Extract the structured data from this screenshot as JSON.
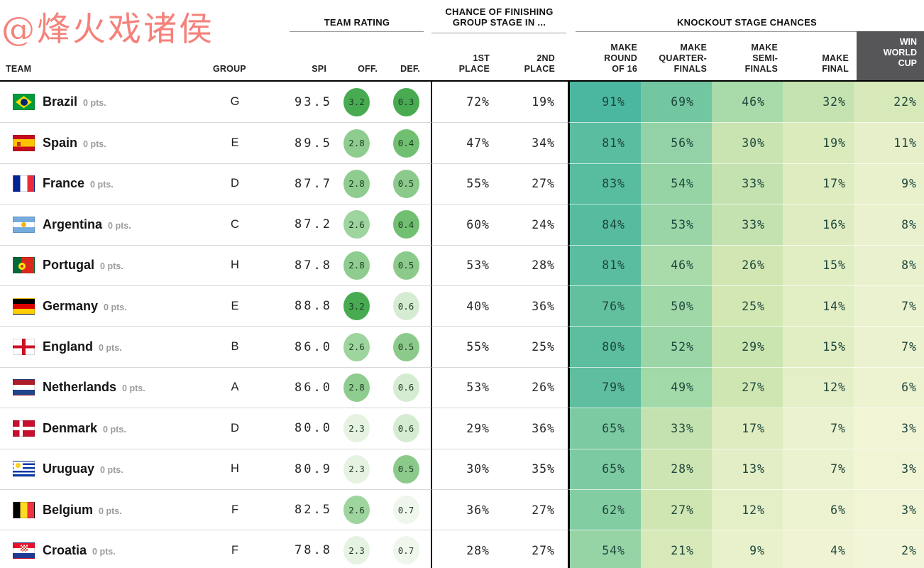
{
  "watermark": {
    "text": "@烽火戏诸侯",
    "color": "#f4827b"
  },
  "header": {
    "bands": {
      "team_rating": "TEAM RATING",
      "finishing_line1": "CHANCE OF FINISHING",
      "finishing_line2": "GROUP STAGE IN ...",
      "knockout": "KNOCKOUT STAGE CHANCES"
    },
    "columns": {
      "team": "TEAM",
      "group": "GROUP",
      "spi": "SPI",
      "off": "OFF.",
      "def": "DEF.",
      "first": [
        "1ST",
        "PLACE"
      ],
      "second": [
        "2ND",
        "PLACE"
      ],
      "r16": [
        "MAKE",
        "ROUND",
        "OF 16"
      ],
      "qf": [
        "MAKE",
        "QUARTER-",
        "FINALS"
      ],
      "sf": [
        "MAKE",
        "SEMI-",
        "FINALS"
      ],
      "final": [
        "MAKE",
        "FINAL"
      ],
      "win": [
        "WIN",
        "WORLD",
        "CUP"
      ]
    },
    "win_block_bg": "#565659"
  },
  "colors": {
    "knockout_scale": [
      [
        0,
        "#f5f6da"
      ],
      [
        25,
        "#d3e7b3"
      ],
      [
        50,
        "#a0d8a8"
      ],
      [
        75,
        "#64c19e"
      ],
      [
        100,
        "#3eb1a2"
      ]
    ],
    "knockout_text": "#1d463c",
    "off_scale": {
      "3.2": "#48ab51",
      "2.8": "#8fcc8f",
      "2.6": "#9ed49e",
      "2.3": "#e6f2e2"
    },
    "def_scale": {
      "0.3": "#48ab51",
      "0.4": "#71c071",
      "0.5": "#8cca8c",
      "0.6": "#d6ecd2",
      "0.7": "#eff6ec"
    }
  },
  "knockout_cell_names": [
    "make-round-of-16-cell",
    "make-quarterfinals-cell",
    "make-semifinals-cell",
    "make-final-cell",
    "win-world-cup-cell"
  ],
  "teams": [
    {
      "id": "brazil",
      "name": "Brazil",
      "pts": "0 pts.",
      "flag": "flag-brazil",
      "group": "G",
      "spi": "93.5",
      "off": "3.2",
      "def": "0.3",
      "first": "72%",
      "second": "19%",
      "knockout": [
        "91%",
        "69%",
        "46%",
        "32%",
        "22%"
      ]
    },
    {
      "id": "spain",
      "name": "Spain",
      "pts": "0 pts.",
      "flag": "flag-spain",
      "group": "E",
      "spi": "89.5",
      "off": "2.8",
      "def": "0.4",
      "first": "47%",
      "second": "34%",
      "knockout": [
        "81%",
        "56%",
        "30%",
        "19%",
        "11%"
      ]
    },
    {
      "id": "france",
      "name": "France",
      "pts": "0 pts.",
      "flag": "flag-france",
      "group": "D",
      "spi": "87.7",
      "off": "2.8",
      "def": "0.5",
      "first": "55%",
      "second": "27%",
      "knockout": [
        "83%",
        "54%",
        "33%",
        "17%",
        "9%"
      ]
    },
    {
      "id": "argentina",
      "name": "Argentina",
      "pts": "0 pts.",
      "flag": "flag-argentina",
      "group": "C",
      "spi": "87.2",
      "off": "2.6",
      "def": "0.4",
      "first": "60%",
      "second": "24%",
      "knockout": [
        "84%",
        "53%",
        "33%",
        "16%",
        "8%"
      ]
    },
    {
      "id": "portugal",
      "name": "Portugal",
      "pts": "0 pts.",
      "flag": "flag-portugal",
      "group": "H",
      "spi": "87.8",
      "off": "2.8",
      "def": "0.5",
      "first": "53%",
      "second": "28%",
      "knockout": [
        "81%",
        "46%",
        "26%",
        "15%",
        "8%"
      ]
    },
    {
      "id": "germany",
      "name": "Germany",
      "pts": "0 pts.",
      "flag": "flag-germany",
      "group": "E",
      "spi": "88.8",
      "off": "3.2",
      "def": "0.6",
      "first": "40%",
      "second": "36%",
      "knockout": [
        "76%",
        "50%",
        "25%",
        "14%",
        "7%"
      ]
    },
    {
      "id": "england",
      "name": "England",
      "pts": "0 pts.",
      "flag": "flag-england",
      "group": "B",
      "spi": "86.0",
      "off": "2.6",
      "def": "0.5",
      "first": "55%",
      "second": "25%",
      "knockout": [
        "80%",
        "52%",
        "29%",
        "15%",
        "7%"
      ]
    },
    {
      "id": "netherlands",
      "name": "Netherlands",
      "pts": "0 pts.",
      "flag": "flag-netherlands",
      "group": "A",
      "spi": "86.0",
      "off": "2.8",
      "def": "0.6",
      "first": "53%",
      "second": "26%",
      "knockout": [
        "79%",
        "49%",
        "27%",
        "12%",
        "6%"
      ]
    },
    {
      "id": "denmark",
      "name": "Denmark",
      "pts": "0 pts.",
      "flag": "flag-denmark",
      "group": "D",
      "spi": "80.0",
      "off": "2.3",
      "def": "0.6",
      "first": "29%",
      "second": "36%",
      "knockout": [
        "65%",
        "33%",
        "17%",
        "7%",
        "3%"
      ]
    },
    {
      "id": "uruguay",
      "name": "Uruguay",
      "pts": "0 pts.",
      "flag": "flag-uruguay",
      "group": "H",
      "spi": "80.9",
      "off": "2.3",
      "def": "0.5",
      "first": "30%",
      "second": "35%",
      "knockout": [
        "65%",
        "28%",
        "13%",
        "7%",
        "3%"
      ]
    },
    {
      "id": "belgium",
      "name": "Belgium",
      "pts": "0 pts.",
      "flag": "flag-belgium",
      "group": "F",
      "spi": "82.5",
      "off": "2.6",
      "def": "0.7",
      "first": "36%",
      "second": "27%",
      "knockout": [
        "62%",
        "27%",
        "12%",
        "6%",
        "3%"
      ]
    },
    {
      "id": "croatia",
      "name": "Croatia",
      "pts": "0 pts.",
      "flag": "flag-croatia",
      "group": "F",
      "spi": "78.8",
      "off": "2.3",
      "def": "0.7",
      "first": "28%",
      "second": "27%",
      "knockout": [
        "54%",
        "21%",
        "9%",
        "4%",
        "2%"
      ]
    }
  ],
  "chart_data": {
    "type": "table",
    "title": "World Cup forecast table",
    "columns": [
      "TEAM",
      "PTS",
      "GROUP",
      "SPI",
      "OFF.",
      "DEF.",
      "1ST PLACE",
      "2ND PLACE",
      "MAKE ROUND OF 16",
      "MAKE QUARTER-FINALS",
      "MAKE SEMI-FINALS",
      "MAKE FINAL",
      "WIN WORLD CUP"
    ],
    "rows": [
      [
        "Brazil",
        "0 pts.",
        "G",
        93.5,
        3.2,
        0.3,
        "72%",
        "19%",
        "91%",
        "69%",
        "46%",
        "32%",
        "22%"
      ],
      [
        "Spain",
        "0 pts.",
        "E",
        89.5,
        2.8,
        0.4,
        "47%",
        "34%",
        "81%",
        "56%",
        "30%",
        "19%",
        "11%"
      ],
      [
        "France",
        "0 pts.",
        "D",
        87.7,
        2.8,
        0.5,
        "55%",
        "27%",
        "83%",
        "54%",
        "33%",
        "17%",
        "9%"
      ],
      [
        "Argentina",
        "0 pts.",
        "C",
        87.2,
        2.6,
        0.4,
        "60%",
        "24%",
        "84%",
        "53%",
        "33%",
        "16%",
        "8%"
      ],
      [
        "Portugal",
        "0 pts.",
        "H",
        87.8,
        2.8,
        0.5,
        "53%",
        "28%",
        "81%",
        "46%",
        "26%",
        "15%",
        "8%"
      ],
      [
        "Germany",
        "0 pts.",
        "E",
        88.8,
        3.2,
        0.6,
        "40%",
        "36%",
        "76%",
        "50%",
        "25%",
        "14%",
        "7%"
      ],
      [
        "England",
        "0 pts.",
        "B",
        86.0,
        2.6,
        0.5,
        "55%",
        "25%",
        "80%",
        "52%",
        "29%",
        "15%",
        "7%"
      ],
      [
        "Netherlands",
        "0 pts.",
        "A",
        86.0,
        2.8,
        0.6,
        "53%",
        "26%",
        "79%",
        "49%",
        "27%",
        "12%",
        "6%"
      ],
      [
        "Denmark",
        "0 pts.",
        "D",
        80.0,
        2.3,
        0.6,
        "29%",
        "36%",
        "65%",
        "33%",
        "17%",
        "7%",
        "3%"
      ],
      [
        "Uruguay",
        "0 pts.",
        "H",
        80.9,
        2.3,
        0.5,
        "30%",
        "35%",
        "65%",
        "28%",
        "13%",
        "7%",
        "3%"
      ],
      [
        "Belgium",
        "0 pts.",
        "F",
        82.5,
        2.6,
        0.7,
        "36%",
        "27%",
        "62%",
        "27%",
        "12%",
        "6%",
        "3%"
      ],
      [
        "Croatia",
        "0 pts.",
        "F",
        78.8,
        2.3,
        0.7,
        "28%",
        "27%",
        "54%",
        "21%",
        "9%",
        "4%",
        "2%"
      ]
    ]
  }
}
